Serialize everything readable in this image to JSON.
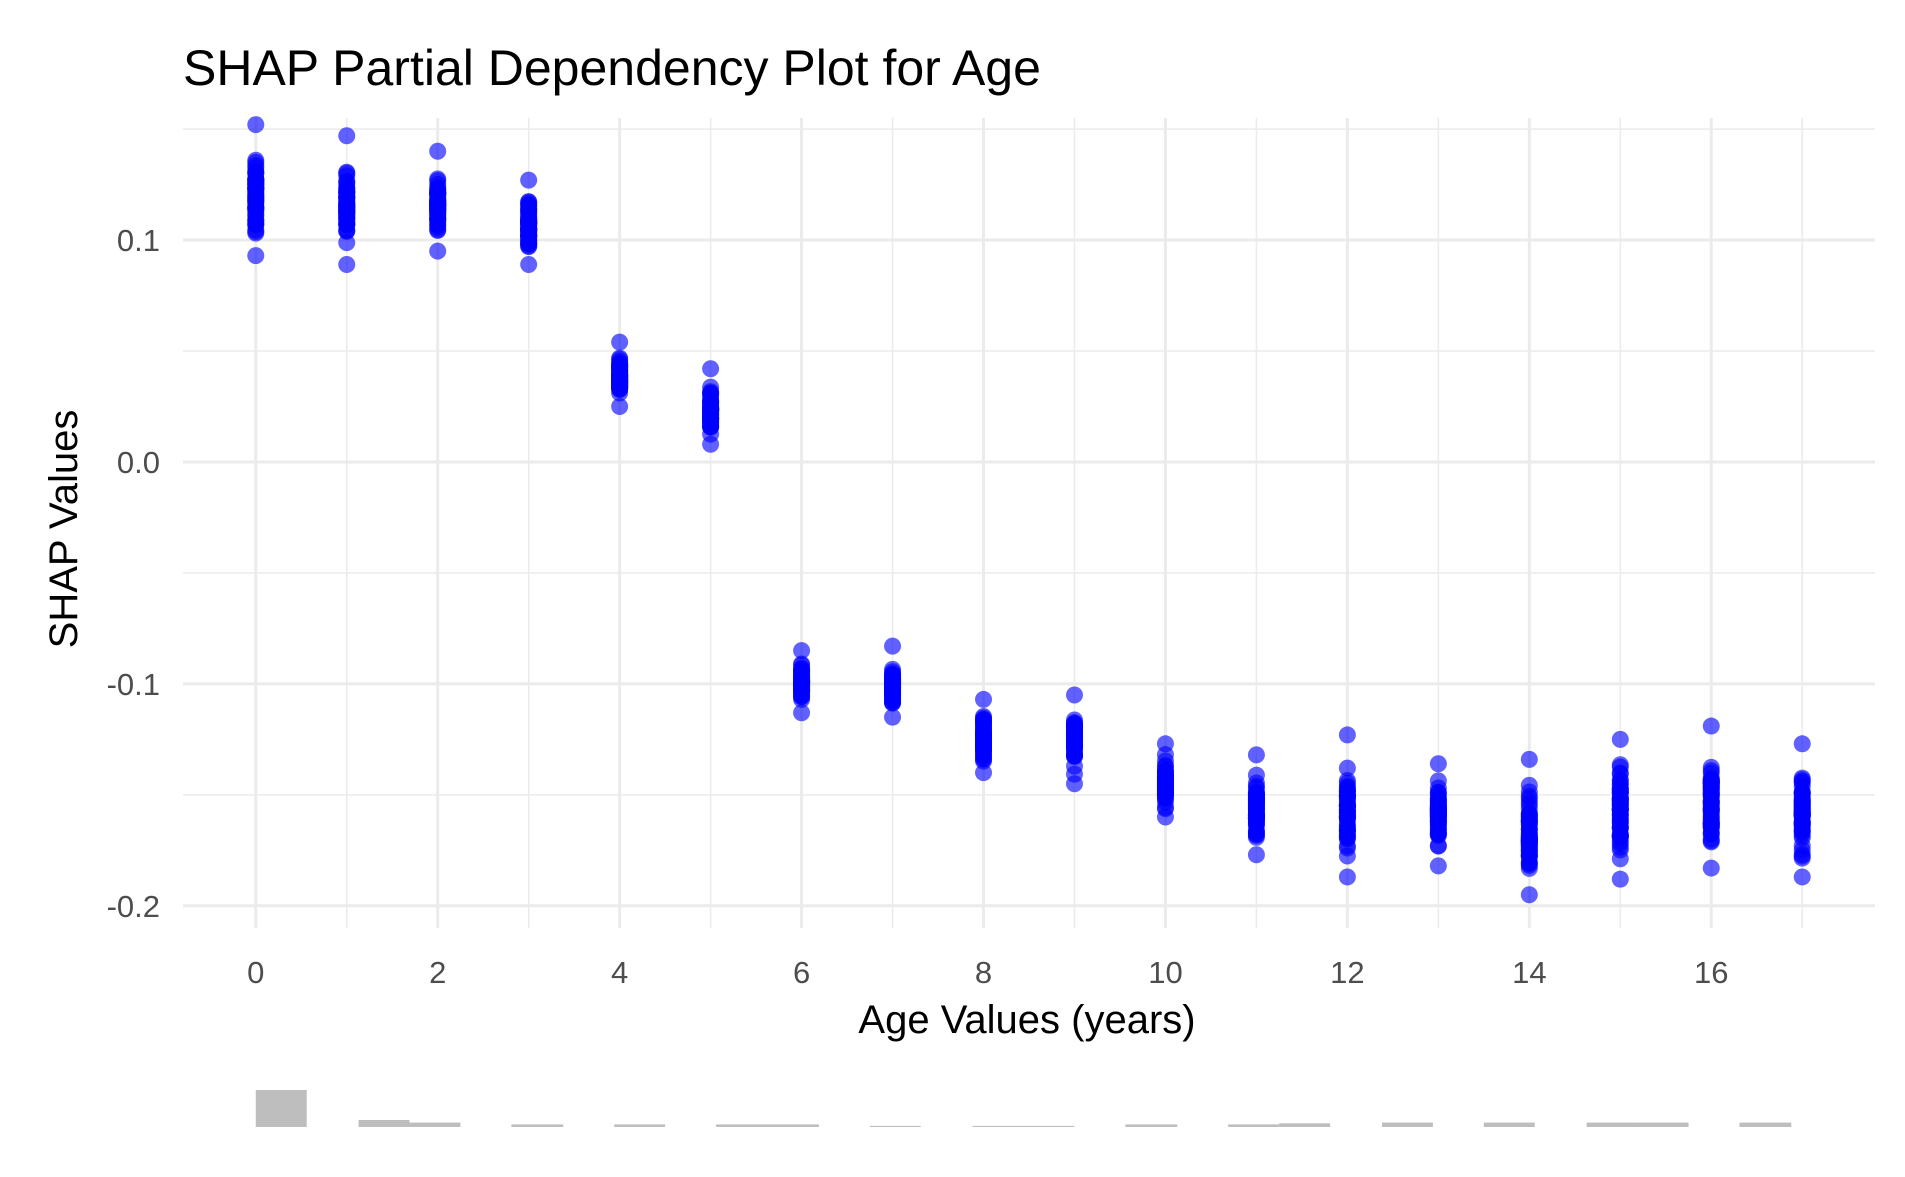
{
  "chart_data": {
    "type": "scatter",
    "title": "SHAP Partial Dependency Plot for Age",
    "xlabel": "Age Values (years)",
    "ylabel": "SHAP Values",
    "xlim": [
      -0.8,
      17.8
    ],
    "ylim": [
      -0.21,
      0.155
    ],
    "x_ticks": [
      0,
      2,
      4,
      6,
      8,
      10,
      12,
      14,
      16
    ],
    "x_tick_labels": [
      "0",
      "2",
      "4",
      "6",
      "8",
      "10",
      "12",
      "14",
      "16"
    ],
    "y_ticks": [
      0.1,
      0.0,
      -0.1,
      -0.2
    ],
    "y_tick_labels": [
      "0.1",
      "0.0",
      "-0.1",
      "-0.2"
    ],
    "grid": true,
    "point_color": "#0000ff",
    "series": [
      {
        "points": [
          {
            "x": 0,
            "y_min": 0.093,
            "y_max": 0.152,
            "y_mean": 0.115
          },
          {
            "x": 1,
            "y_min": 0.089,
            "y_max": 0.147,
            "y_mean": 0.115
          },
          {
            "x": 2,
            "y_min": 0.095,
            "y_max": 0.14,
            "y_mean": 0.113
          },
          {
            "x": 3,
            "y_min": 0.089,
            "y_max": 0.127,
            "y_mean": 0.108
          },
          {
            "x": 4,
            "y_min": 0.025,
            "y_max": 0.054,
            "y_mean": 0.038
          },
          {
            "x": 5,
            "y_min": 0.008,
            "y_max": 0.042,
            "y_mean": 0.022
          },
          {
            "x": 6,
            "y_min": -0.113,
            "y_max": -0.085,
            "y_mean": -0.097
          },
          {
            "x": 7,
            "y_min": -0.115,
            "y_max": -0.083,
            "y_mean": -0.098
          },
          {
            "x": 8,
            "y_min": -0.14,
            "y_max": -0.107,
            "y_mean": -0.124
          },
          {
            "x": 9,
            "y_min": -0.145,
            "y_max": -0.105,
            "y_mean": -0.128
          },
          {
            "x": 10,
            "y_min": -0.16,
            "y_max": -0.127,
            "y_mean": -0.146
          },
          {
            "x": 11,
            "y_min": -0.177,
            "y_max": -0.132,
            "y_mean": -0.161
          },
          {
            "x": 12,
            "y_min": -0.187,
            "y_max": -0.123,
            "y_mean": -0.162
          },
          {
            "x": 13,
            "y_min": -0.182,
            "y_max": -0.136,
            "y_mean": -0.162
          },
          {
            "x": 14,
            "y_min": -0.195,
            "y_max": -0.134,
            "y_mean": -0.165
          },
          {
            "x": 15,
            "y_min": -0.188,
            "y_max": -0.125,
            "y_mean": -0.16
          },
          {
            "x": 16,
            "y_min": -0.183,
            "y_max": -0.119,
            "y_mean": -0.155
          },
          {
            "x": 17,
            "y_min": -0.187,
            "y_max": -0.127,
            "y_mean": -0.155
          }
        ]
      }
    ],
    "histogram": {
      "color": "#bebebe",
      "bins": [
        {
          "x0": 0.0,
          "x1": 0.56,
          "count": 100
        },
        {
          "x0": 1.13,
          "x1": 1.69,
          "count": 19
        },
        {
          "x0": 1.69,
          "x1": 2.25,
          "count": 12
        },
        {
          "x0": 2.81,
          "x1": 3.38,
          "count": 7
        },
        {
          "x0": 3.94,
          "x1": 4.5,
          "count": 7
        },
        {
          "x0": 5.06,
          "x1": 5.63,
          "count": 7
        },
        {
          "x0": 5.63,
          "x1": 6.19,
          "count": 7
        },
        {
          "x0": 6.75,
          "x1": 7.31,
          "count": 3
        },
        {
          "x0": 7.88,
          "x1": 8.44,
          "count": 3
        },
        {
          "x0": 8.44,
          "x1": 9.0,
          "count": 3
        },
        {
          "x0": 9.56,
          "x1": 10.13,
          "count": 7
        },
        {
          "x0": 10.69,
          "x1": 11.25,
          "count": 7
        },
        {
          "x0": 11.25,
          "x1": 11.81,
          "count": 10
        },
        {
          "x0": 12.38,
          "x1": 12.94,
          "count": 12
        },
        {
          "x0": 13.5,
          "x1": 14.06,
          "count": 12
        },
        {
          "x0": 14.63,
          "x1": 15.19,
          "count": 12
        },
        {
          "x0": 15.19,
          "x1": 15.75,
          "count": 12
        },
        {
          "x0": 16.31,
          "x1": 16.88,
          "count": 12
        }
      ]
    }
  }
}
